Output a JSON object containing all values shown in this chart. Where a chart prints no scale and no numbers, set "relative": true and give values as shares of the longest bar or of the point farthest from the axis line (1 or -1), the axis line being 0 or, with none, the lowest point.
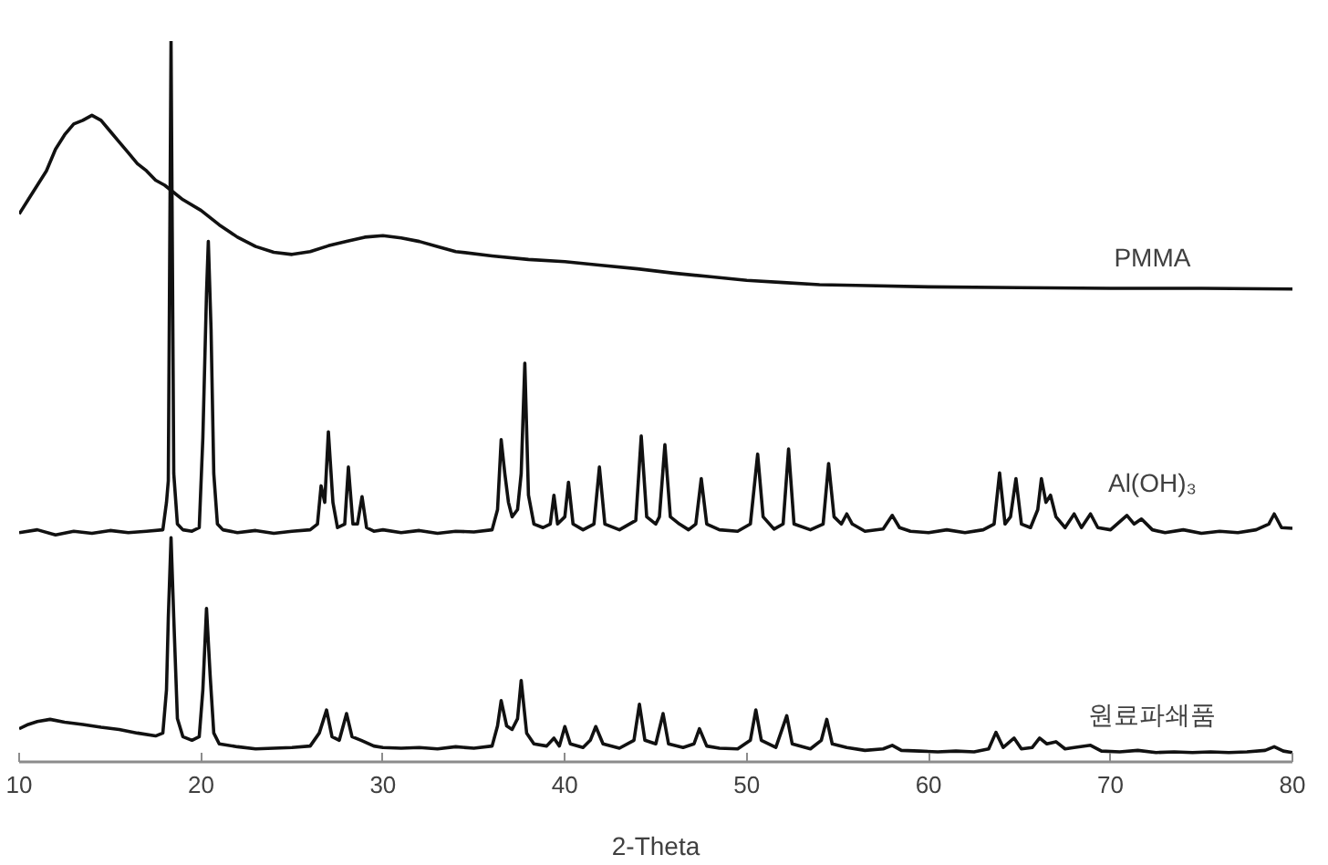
{
  "chart_data": {
    "type": "line",
    "xlabel": "2-Theta",
    "relative": true,
    "xlim": [
      10,
      80
    ],
    "xticks": [
      10,
      20,
      30,
      40,
      50,
      60,
      70,
      80
    ],
    "series": [
      {
        "name": "PMMA",
        "color": "#111111",
        "x": [
          10,
          10.5,
          11,
          11.5,
          12,
          12.5,
          13,
          13.5,
          14,
          14.5,
          15,
          15.5,
          16,
          16.5,
          17,
          17.5,
          18,
          19,
          20,
          21,
          22,
          23,
          24,
          25,
          26,
          27,
          28,
          29,
          30,
          31,
          32,
          33,
          34,
          36,
          38,
          40,
          42,
          44,
          46,
          48,
          50,
          52,
          54,
          56,
          60,
          65,
          70,
          75,
          80
        ],
        "values": [
          0.76,
          0.78,
          0.8,
          0.82,
          0.85,
          0.87,
          0.885,
          0.89,
          0.897,
          0.89,
          0.875,
          0.86,
          0.845,
          0.83,
          0.82,
          0.807,
          0.8,
          0.78,
          0.765,
          0.745,
          0.728,
          0.715,
          0.707,
          0.704,
          0.708,
          0.716,
          0.722,
          0.728,
          0.73,
          0.727,
          0.722,
          0.715,
          0.708,
          0.702,
          0.697,
          0.694,
          0.689,
          0.684,
          0.678,
          0.673,
          0.668,
          0.665,
          0.662,
          0.661,
          0.659,
          0.658,
          0.657,
          0.657,
          0.656
        ]
      },
      {
        "name": "Al(OH)₃",
        "color": "#111111",
        "x": [
          10,
          11,
          12,
          13,
          14,
          15,
          16,
          17,
          17.9,
          18.1,
          18.2,
          18.35,
          18.5,
          18.7,
          19,
          19.5,
          19.9,
          20.1,
          20.3,
          20.4,
          20.55,
          20.7,
          20.9,
          21.2,
          22,
          23,
          24,
          25,
          26,
          26.4,
          26.6,
          26.8,
          27.0,
          27.25,
          27.5,
          27.9,
          28.1,
          28.35,
          28.6,
          28.85,
          29.1,
          29.5,
          30,
          31,
          32,
          33,
          34,
          35,
          36,
          36.3,
          36.5,
          36.7,
          36.9,
          37.1,
          37.4,
          37.6,
          37.8,
          38.0,
          38.3,
          38.8,
          39.2,
          39.4,
          39.6,
          40.0,
          40.2,
          40.45,
          41.0,
          41.6,
          41.9,
          42.2,
          43.0,
          43.9,
          44.2,
          44.5,
          45.0,
          45.2,
          45.5,
          45.8,
          46.3,
          46.8,
          47.2,
          47.5,
          47.8,
          48.5,
          49.5,
          50.2,
          50.6,
          50.9,
          51.5,
          52.0,
          52.3,
          52.6,
          53.5,
          54.2,
          54.5,
          54.8,
          55.2,
          55.5,
          55.8,
          56.5,
          57.5,
          58.0,
          58.4,
          59,
          60,
          61,
          62,
          63,
          63.6,
          63.9,
          64.2,
          64.5,
          64.8,
          65.1,
          65.6,
          66.0,
          66.2,
          66.45,
          66.7,
          67.0,
          67.5,
          68.0,
          68.4,
          68.9,
          69.3,
          70,
          70.9,
          71.3,
          71.7,
          72.3,
          73,
          74,
          75,
          76,
          77,
          78,
          78.7,
          79.0,
          79.4,
          80
        ],
        "values": [
          0.318,
          0.322,
          0.315,
          0.32,
          0.317,
          0.321,
          0.318,
          0.32,
          0.322,
          0.36,
          0.39,
          1.0,
          0.4,
          0.33,
          0.322,
          0.32,
          0.325,
          0.45,
          0.65,
          0.722,
          0.6,
          0.4,
          0.33,
          0.322,
          0.318,
          0.321,
          0.317,
          0.32,
          0.322,
          0.33,
          0.383,
          0.36,
          0.458,
          0.36,
          0.325,
          0.33,
          0.409,
          0.33,
          0.33,
          0.368,
          0.325,
          0.32,
          0.322,
          0.318,
          0.321,
          0.317,
          0.32,
          0.319,
          0.322,
          0.35,
          0.447,
          0.4,
          0.36,
          0.34,
          0.35,
          0.4,
          0.553,
          0.37,
          0.33,
          0.325,
          0.33,
          0.37,
          0.33,
          0.34,
          0.388,
          0.33,
          0.322,
          0.33,
          0.409,
          0.33,
          0.322,
          0.335,
          0.452,
          0.34,
          0.33,
          0.34,
          0.44,
          0.34,
          0.33,
          0.322,
          0.33,
          0.393,
          0.33,
          0.322,
          0.32,
          0.33,
          0.427,
          0.34,
          0.323,
          0.33,
          0.434,
          0.33,
          0.322,
          0.33,
          0.414,
          0.34,
          0.33,
          0.344,
          0.33,
          0.32,
          0.323,
          0.342,
          0.325,
          0.32,
          0.318,
          0.322,
          0.318,
          0.322,
          0.33,
          0.401,
          0.33,
          0.34,
          0.393,
          0.33,
          0.325,
          0.35,
          0.393,
          0.36,
          0.37,
          0.34,
          0.325,
          0.344,
          0.325,
          0.344,
          0.325,
          0.322,
          0.342,
          0.33,
          0.337,
          0.322,
          0.318,
          0.322,
          0.317,
          0.32,
          0.318,
          0.322,
          0.33,
          0.344,
          0.325,
          0.324
        ]
      },
      {
        "name": "원료파쇄품",
        "color": "#111111",
        "x": [
          10,
          10.5,
          11,
          11.7,
          12.5,
          13.5,
          14.5,
          15.5,
          16.5,
          17.5,
          17.9,
          18.1,
          18.2,
          18.35,
          18.5,
          18.7,
          19.0,
          19.5,
          19.9,
          20.1,
          20.3,
          20.5,
          20.7,
          21.0,
          22,
          23,
          24,
          25,
          26,
          26.5,
          26.9,
          27.2,
          27.6,
          28.0,
          28.3,
          28.8,
          29.5,
          30,
          31,
          32,
          33,
          34,
          35,
          36,
          36.3,
          36.5,
          36.8,
          37.1,
          37.4,
          37.6,
          37.9,
          38.3,
          39.0,
          39.4,
          39.7,
          40.0,
          40.3,
          41.0,
          41.4,
          41.7,
          42.1,
          43,
          43.8,
          44.1,
          44.4,
          45.0,
          45.4,
          45.7,
          46.5,
          47.1,
          47.4,
          47.8,
          48.5,
          49.5,
          50.2,
          50.5,
          50.8,
          51.6,
          52.2,
          52.5,
          53.5,
          54.1,
          54.4,
          54.7,
          55.5,
          56.5,
          57.5,
          58.0,
          58.5,
          59.5,
          60.5,
          61.5,
          62.5,
          63.3,
          63.7,
          64.1,
          64.7,
          65.1,
          65.7,
          66.1,
          66.5,
          67.0,
          67.5,
          68.0,
          68.9,
          69.5,
          70.5,
          71.5,
          72.5,
          73.5,
          74.5,
          75.5,
          76.5,
          77.5,
          78.5,
          79.0,
          79.5,
          80
        ],
        "values": [
          0.046,
          0.052,
          0.056,
          0.059,
          0.055,
          0.052,
          0.048,
          0.045,
          0.04,
          0.036,
          0.04,
          0.1,
          0.2,
          0.311,
          0.2,
          0.06,
          0.035,
          0.03,
          0.035,
          0.1,
          0.213,
          0.12,
          0.04,
          0.025,
          0.021,
          0.018,
          0.019,
          0.02,
          0.022,
          0.04,
          0.072,
          0.035,
          0.03,
          0.067,
          0.035,
          0.03,
          0.022,
          0.02,
          0.019,
          0.02,
          0.018,
          0.021,
          0.019,
          0.022,
          0.05,
          0.085,
          0.05,
          0.045,
          0.06,
          0.113,
          0.04,
          0.025,
          0.022,
          0.033,
          0.022,
          0.049,
          0.025,
          0.02,
          0.03,
          0.049,
          0.025,
          0.019,
          0.03,
          0.08,
          0.03,
          0.025,
          0.067,
          0.025,
          0.02,
          0.025,
          0.046,
          0.022,
          0.019,
          0.018,
          0.03,
          0.072,
          0.03,
          0.02,
          0.064,
          0.025,
          0.018,
          0.03,
          0.059,
          0.025,
          0.02,
          0.016,
          0.018,
          0.023,
          0.016,
          0.015,
          0.014,
          0.015,
          0.014,
          0.018,
          0.041,
          0.02,
          0.033,
          0.018,
          0.02,
          0.033,
          0.025,
          0.028,
          0.018,
          0.02,
          0.023,
          0.015,
          0.014,
          0.016,
          0.013,
          0.014,
          0.013,
          0.014,
          0.013,
          0.014,
          0.016,
          0.021,
          0.015,
          0.013
        ]
      }
    ]
  }
}
